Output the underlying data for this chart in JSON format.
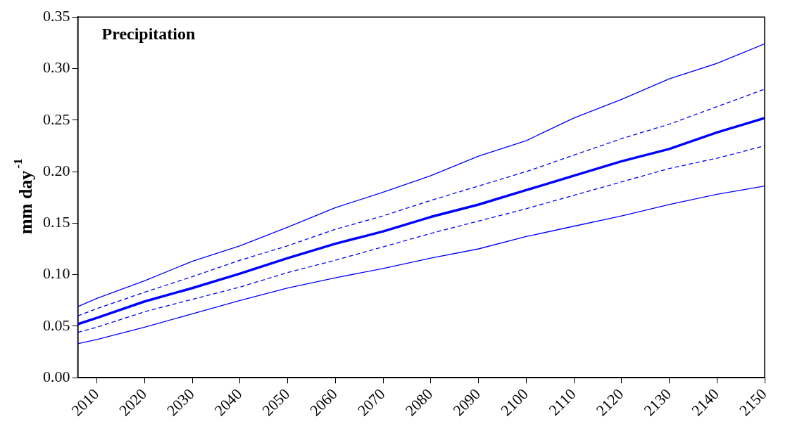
{
  "chart_data": {
    "type": "line",
    "title": "Precipitation",
    "ylabel": "mm day$^{-1}$",
    "x": [
      2006,
      2010,
      2020,
      2030,
      2040,
      2050,
      2060,
      2070,
      2080,
      2090,
      2100,
      2110,
      2120,
      2130,
      2140,
      2150
    ],
    "series": [
      {
        "color": "#0000ff",
        "line_style": "solid",
        "values": [
          0.069,
          0.077,
          0.094,
          0.113,
          0.128,
          0.146,
          0.165,
          0.18,
          0.196,
          0.215,
          0.23,
          0.252,
          0.27,
          0.29,
          0.305,
          0.324
        ]
      },
      {
        "color": "#0000ff",
        "line_style": "dashed",
        "values": [
          0.06,
          0.067,
          0.083,
          0.098,
          0.114,
          0.128,
          0.144,
          0.157,
          0.172,
          0.186,
          0.2,
          0.216,
          0.232,
          0.246,
          0.263,
          0.28
        ]
      },
      {
        "color": "#0000ff",
        "line_style": "solid",
        "values": [
          0.052,
          0.058,
          0.074,
          0.087,
          0.101,
          0.116,
          0.13,
          0.142,
          0.156,
          0.168,
          0.182,
          0.196,
          0.21,
          0.222,
          0.238,
          0.252
        ]
      },
      {
        "color": "#0000ff",
        "line_style": "dashed",
        "values": [
          0.044,
          0.049,
          0.064,
          0.076,
          0.088,
          0.102,
          0.114,
          0.127,
          0.14,
          0.152,
          0.164,
          0.177,
          0.19,
          0.203,
          0.213,
          0.225
        ]
      },
      {
        "color": "#0000ff",
        "line_style": "solid",
        "values": [
          0.033,
          0.037,
          0.049,
          0.062,
          0.075,
          0.087,
          0.097,
          0.106,
          0.116,
          0.125,
          0.137,
          0.147,
          0.157,
          0.168,
          0.178,
          0.186
        ]
      }
    ],
    "xlim": [
      2006,
      2150
    ],
    "xticks": [
      2010,
      2020,
      2030,
      2040,
      2050,
      2060,
      2070,
      2080,
      2090,
      2100,
      2110,
      2120,
      2130,
      2140,
      2150
    ],
    "ylim": [
      0,
      0.35
    ],
    "yticks": [
      {
        "value": 0,
        "label": "0.00"
      },
      {
        "value": 0.05,
        "label": "0.05"
      },
      {
        "value": 0.1,
        "label": "0.10"
      },
      {
        "value": 0.15,
        "label": "0.15"
      },
      {
        "value": 0.2,
        "label": "0.20"
      },
      {
        "value": 0.25,
        "label": "0.25"
      },
      {
        "value": 0.3,
        "label": "0.30"
      },
      {
        "value": 0.35,
        "label": "0.35"
      }
    ],
    "grid": false,
    "legend": false,
    "marker": "none"
  }
}
